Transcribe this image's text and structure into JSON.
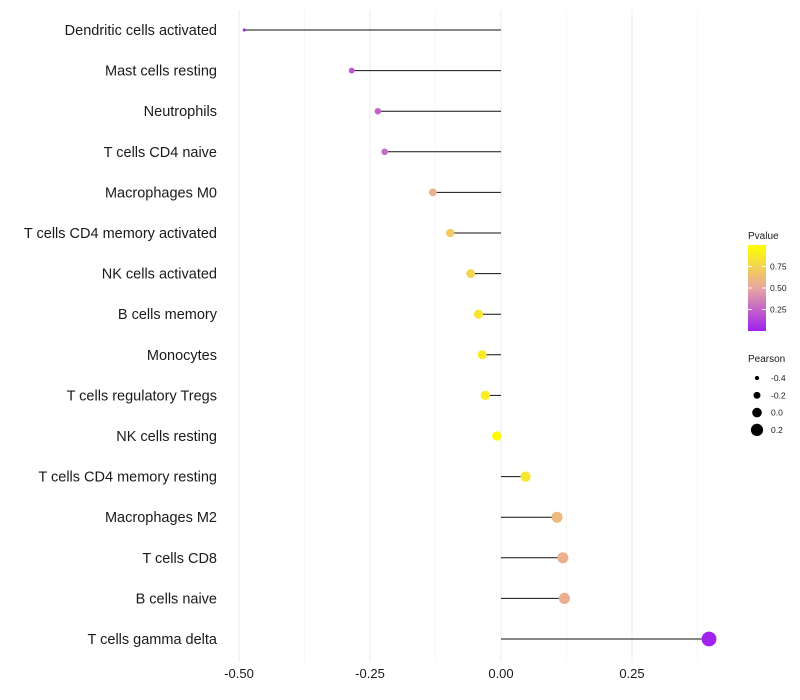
{
  "chart_data": {
    "type": "lollipop",
    "title": "",
    "xlabel": "",
    "ylabel": "",
    "xlim": [
      -0.5,
      0.4
    ],
    "xticks": [
      -0.5,
      -0.25,
      0.0,
      0.25
    ],
    "xtick_labels": [
      "-0.50",
      "-0.25",
      "0.00",
      "0.25"
    ],
    "grid": "vertical",
    "categories": [
      "Dendritic cells activated",
      "Mast cells resting",
      "Neutrophils",
      "T cells CD4 naive",
      "Macrophages M0",
      "T cells CD4 memory activated",
      "NK cells activated",
      "B cells memory",
      "Monocytes",
      "T cells regulatory  Tregs ",
      "NK cells resting",
      "T cells CD4 memory resting",
      "Macrophages M2",
      "T cells CD8",
      "B cells naive",
      "T cells gamma delta"
    ],
    "pearson": [
      -0.49,
      -0.285,
      -0.235,
      -0.222,
      -0.13,
      -0.097,
      -0.058,
      -0.043,
      -0.036,
      -0.03,
      -0.008,
      0.047,
      0.107,
      0.118,
      0.121,
      0.397
    ],
    "pvalue": [
      0.05,
      0.2,
      0.25,
      0.28,
      0.55,
      0.7,
      0.75,
      0.85,
      0.88,
      0.9,
      0.97,
      0.85,
      0.6,
      0.55,
      0.55,
      0.01
    ],
    "color_legend": {
      "title": "Pvalue",
      "ticks": [
        0.25,
        0.5,
        0.75
      ],
      "tick_labels": [
        "0.25",
        "0.50",
        "0.75"
      ],
      "range": [
        0.0,
        1.0
      ],
      "low_color": "#a020f0",
      "mid_color": "#e8a7a1",
      "high_color": "#ffff00"
    },
    "size_legend": {
      "title": "Pearson",
      "values": [
        -0.4,
        -0.2,
        0.0,
        0.2
      ],
      "labels": [
        "-0.4",
        "-0.2",
        "0.0",
        "0.2"
      ]
    },
    "legend_position": "right"
  }
}
